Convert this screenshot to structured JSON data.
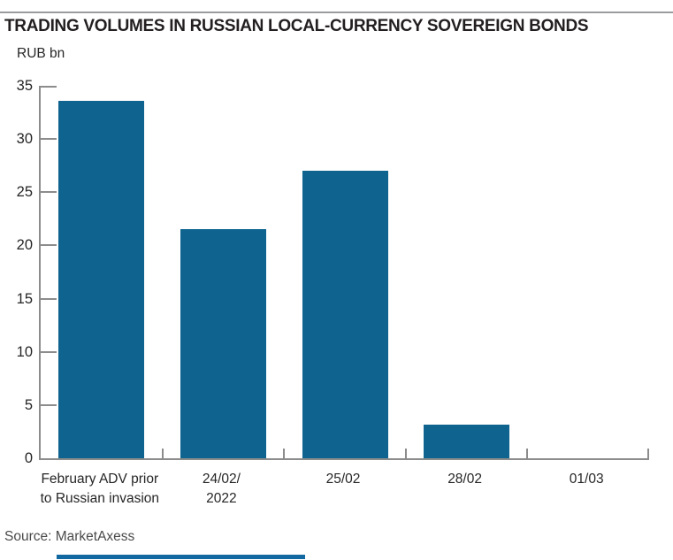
{
  "header": {
    "title": "TRADING VOLUMES IN RUSSIAN LOCAL-CURRENCY SOVEREIGN BONDS"
  },
  "chart_data": {
    "type": "bar",
    "title": "TRADING VOLUMES IN RUSSIAN LOCAL-CURRENCY SOVEREIGN BONDS",
    "ylabel": "RUB bn",
    "xlabel": "",
    "categories": [
      "February ADV prior to Russian invasion",
      "24/02/2022",
      "25/02",
      "28/02",
      "01/03"
    ],
    "category_lines": [
      [
        "February ADV prior",
        "to Russian invasion"
      ],
      [
        "24/02/",
        "2022"
      ],
      [
        "25/02"
      ],
      [
        "28/02"
      ],
      [
        "01/03"
      ]
    ],
    "values": [
      33.6,
      21.5,
      27,
      3.2,
      0
    ],
    "ylim": [
      0,
      35
    ],
    "yticks": [
      0,
      5,
      10,
      15,
      20,
      25,
      30,
      35
    ],
    "grid": false,
    "legend": "none",
    "bar_color": "#0e648f",
    "axis_color": "#8c8c8c"
  },
  "footer": {
    "source": "Source: MarketAxess"
  },
  "colors": {
    "background": "#ffffff",
    "title_text": "#231f20",
    "axis_text": "#262626",
    "source_text": "#4a4a4a",
    "top_rule": "#9a9c9e",
    "accent_bar": "#1268a1"
  }
}
